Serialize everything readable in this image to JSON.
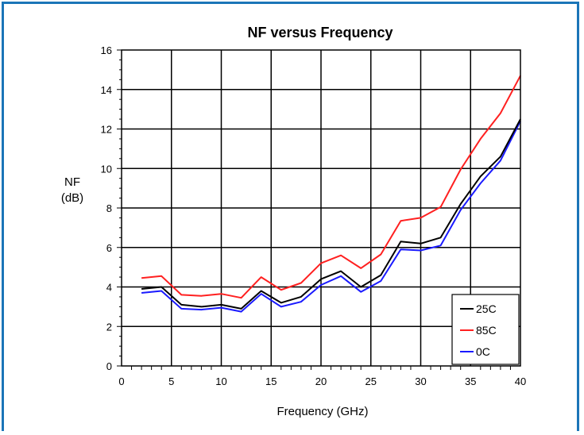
{
  "chart_data": {
    "type": "line",
    "title": "NF versus Frequency",
    "xlabel": "Frequency (GHz)",
    "ylabel_lines": [
      "NF",
      "(dB)"
    ],
    "xlim": [
      0,
      40
    ],
    "ylim": [
      0,
      16
    ],
    "x_ticks": [
      "0",
      "5",
      "10",
      "15",
      "20",
      "25",
      "30",
      "35",
      "40"
    ],
    "y_ticks": [
      "0",
      "2",
      "4",
      "6",
      "8",
      "10",
      "12",
      "14",
      "16"
    ],
    "grid": true,
    "legend_position": "bottom-right",
    "x": [
      2,
      4,
      6,
      8,
      10,
      12,
      14,
      16,
      18,
      20,
      22,
      24,
      26,
      28,
      30,
      32,
      34,
      36,
      38,
      40
    ],
    "series": [
      {
        "name": "25C",
        "color": "#000000",
        "values": [
          3.9,
          4.0,
          3.1,
          3.0,
          3.1,
          2.9,
          3.8,
          3.2,
          3.5,
          4.4,
          4.8,
          4.0,
          4.6,
          6.3,
          6.2,
          6.5,
          8.2,
          9.6,
          10.6,
          12.5
        ]
      },
      {
        "name": "85C",
        "color": "#ff2020",
        "values": [
          4.45,
          4.55,
          3.6,
          3.55,
          3.65,
          3.45,
          4.5,
          3.85,
          4.2,
          5.2,
          5.6,
          4.95,
          5.65,
          7.35,
          7.5,
          8.05,
          9.95,
          11.5,
          12.8,
          14.7
        ]
      },
      {
        "name": "0C",
        "color": "#1a1aff",
        "values": [
          3.7,
          3.8,
          2.9,
          2.85,
          2.95,
          2.75,
          3.65,
          3.0,
          3.25,
          4.1,
          4.55,
          3.75,
          4.3,
          5.9,
          5.85,
          6.1,
          7.9,
          9.25,
          10.4,
          12.4
        ]
      }
    ]
  }
}
